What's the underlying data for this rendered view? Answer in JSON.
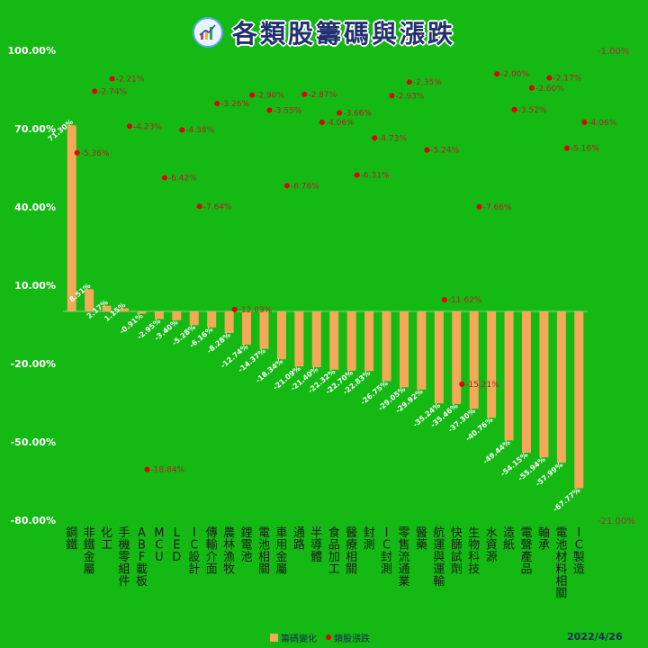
{
  "title": "各類股籌碼與漲跌",
  "date": "2022/4/26",
  "legend": {
    "bar_label": "籌碼變化",
    "dot_label": "類股漲跌"
  },
  "colors": {
    "background": "#14b914",
    "bar": "#f3a958",
    "dot": "#e00000",
    "left_axis_text": "#ffffff",
    "right_axis_text": "#a83232",
    "bar_label_text": "#ffffff",
    "dot_label_text": "#b22222",
    "title_text": "#22306e"
  },
  "chart_data": {
    "type": "bar",
    "categories": [
      "鋼鐵",
      "非鐵金屬",
      "化工",
      "手機零組件",
      "ABF載板",
      "MCU",
      "LED",
      "IC設計",
      "傳輸介面",
      "農林漁牧",
      "鋰電池",
      "電池相關",
      "車用金屬",
      "通路",
      "半導體",
      "食品加工",
      "醫療相關",
      "封測",
      "IC封測",
      "零售流通業",
      "醫藥",
      "航運與運輸",
      "快篩試劑",
      "生物科技",
      "水資源",
      "造紙",
      "電聲產品",
      "軸承",
      "電池材料相關",
      "IC製造"
    ],
    "series": [
      {
        "name": "籌碼變化",
        "axis": "left",
        "values": [
          71.3,
          8.51,
          2.17,
          1.15,
          -0.91,
          -2.95,
          -3.4,
          -5.28,
          -6.16,
          -8.28,
          -12.74,
          -14.37,
          -18.34,
          -21.09,
          -21.4,
          -22.32,
          -22.7,
          -22.83,
          -26.75,
          -29.05,
          -29.92,
          -35.24,
          -35.46,
          -37.3,
          -40.76,
          -49.44,
          -54.15,
          -55.94,
          -57.99,
          -67.77
        ],
        "labels": [
          "71.30%",
          "8.51%",
          "2.17%",
          "1.15%",
          "-0.91%",
          "-2.95%",
          "-3.40%",
          "-5.28%",
          "-6.16%",
          "-8.28%",
          "-12.74%",
          "-14.37%",
          "-18.34%",
          "-21.09%",
          "-21.40%",
          "-22.32%",
          "-22.70%",
          "-22.83%",
          "-26.75%",
          "-29.05%",
          "-29.92%",
          "-35.24%",
          "-35.46%",
          "-37.30%",
          "-40.76%",
          "-49.44%",
          "-54.15%",
          "-55.94%",
          "-57.99%",
          "-67.77%"
        ]
      },
      {
        "name": "類股漲跌",
        "axis": "right",
        "values": [
          -5.36,
          -2.74,
          -2.21,
          -4.23,
          -18.84,
          -6.42,
          -4.38,
          -7.64,
          -3.26,
          -12.03,
          -2.9,
          -3.55,
          -6.76,
          -2.87,
          -4.06,
          -3.66,
          -6.31,
          -4.73,
          -2.93,
          -2.35,
          -5.24,
          -11.62,
          -15.21,
          -7.66,
          -2.0,
          -3.52,
          -2.6,
          -2.17,
          -5.16,
          -4.06
        ],
        "labels": [
          "-5.36%",
          "-2.74%",
          "-2.21%",
          "-4.23%",
          "-18.84%",
          "-6.42%",
          "-4.38%",
          "-7.64%",
          "-3.26%",
          "-12.03%",
          "-2.90%",
          "-3.55%",
          "-6.76%",
          "-2.87%",
          "-4.06%",
          "-3.66%",
          "-6.31%",
          "-4.73%",
          "-2.93%",
          "-2.35%",
          "-5.24%",
          "-11.62%",
          "-15.21%",
          "-7.66%",
          "-2.00%",
          "-3.52%",
          "-2.60%",
          "-2.17%",
          "-5.16%",
          "-4.06%"
        ]
      }
    ],
    "y_left": {
      "ylim": [
        -80,
        100
      ],
      "ticks": [
        100,
        70,
        40,
        10,
        -20,
        -50,
        -80
      ],
      "tick_labels": [
        "100.00%",
        "70.00%",
        "40.00%",
        "10.00%",
        "-20.00%",
        "-50.00%",
        "-80.00%"
      ]
    },
    "y_right": {
      "ylim": [
        -21,
        -1
      ],
      "tick_labels": [
        "-1.00%",
        "-21.00%"
      ]
    },
    "grid": false,
    "legend_position": "bottom"
  }
}
